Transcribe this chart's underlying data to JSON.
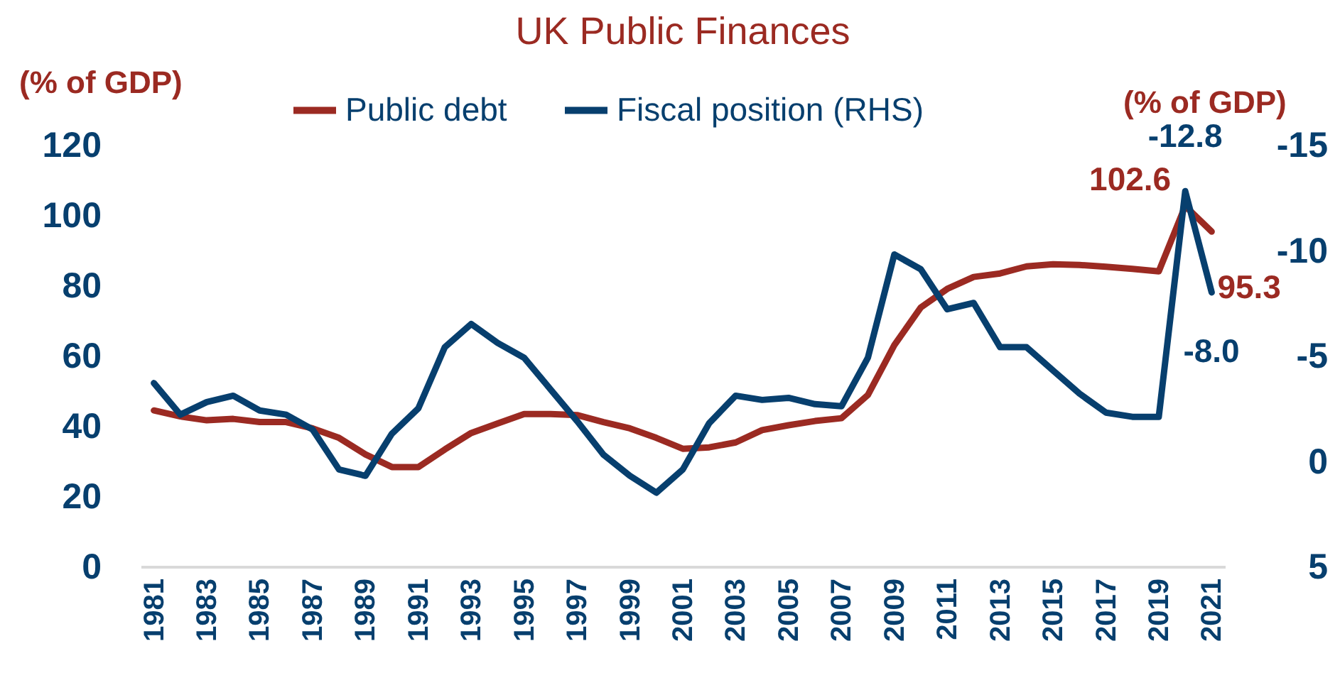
{
  "chart_data": {
    "type": "line",
    "title": "UK Public Finances",
    "ylabel": "(% of GDP)",
    "y2label": "(% of GDP)",
    "x": [
      1981,
      1982,
      1983,
      1984,
      1985,
      1986,
      1987,
      1988,
      1989,
      1990,
      1991,
      1992,
      1993,
      1994,
      1995,
      1996,
      1997,
      1998,
      1999,
      2000,
      2001,
      2002,
      2003,
      2004,
      2005,
      2006,
      2007,
      2008,
      2009,
      2010,
      2011,
      2012,
      2013,
      2014,
      2015,
      2016,
      2017,
      2018,
      2019,
      2020,
      2021
    ],
    "xlim": [
      1980.5,
      2021.5
    ],
    "xticks": [
      1981,
      1983,
      1985,
      1987,
      1989,
      1991,
      1993,
      1995,
      1997,
      1999,
      2001,
      2003,
      2005,
      2007,
      2009,
      2011,
      2013,
      2015,
      2017,
      2019,
      2021
    ],
    "ylim": [
      0,
      120
    ],
    "yticks": [
      0,
      20,
      40,
      60,
      80,
      100,
      120
    ],
    "y2lim": [
      5,
      -15
    ],
    "y2ticks": [
      5,
      0,
      -5,
      -10,
      -15
    ],
    "legend": "top",
    "grid": false,
    "series": [
      {
        "name": "Public debt",
        "color": "#9b2a22",
        "values": [
          44.4,
          42.7,
          41.6,
          42,
          41.1,
          41.1,
          39.3,
          36.6,
          31.9,
          28.3,
          28.3,
          33.3,
          38,
          40.7,
          43.4,
          43.4,
          43.1,
          41.1,
          39.3,
          36.6,
          33.5,
          33.9,
          35.3,
          38.8,
          40.2,
          41.4,
          42.2,
          48.8,
          63,
          73.7,
          79,
          82.4,
          83.4,
          85.4,
          86,
          85.8,
          85.3,
          84.7,
          84,
          102.6,
          95.3
        ],
        "value_labels": [
          null,
          null,
          null,
          null,
          null,
          null,
          null,
          null,
          null,
          null,
          null,
          null,
          null,
          null,
          null,
          null,
          null,
          null,
          null,
          null,
          null,
          null,
          null,
          null,
          null,
          null,
          null,
          null,
          null,
          null,
          null,
          null,
          null,
          null,
          null,
          null,
          null,
          null,
          null,
          "102.6",
          "95.3"
        ]
      },
      {
        "name": "Fiscal position (RHS)",
        "color": "#073f6e",
        "axis": "y2",
        "values": [
          -3.7,
          -2.2,
          -2.8,
          -3.1,
          -2.4,
          -2.2,
          -1.5,
          0.4,
          0.7,
          -1.3,
          -2.5,
          -5.4,
          -6.5,
          -5.6,
          -4.9,
          -3.4,
          -1.9,
          -0.3,
          0.7,
          1.5,
          0.4,
          -1.8,
          -3.1,
          -2.9,
          -3.0,
          -2.7,
          -2.6,
          -4.9,
          -9.8,
          -9.1,
          -7.2,
          -7.5,
          -5.4,
          -5.4,
          -4.3,
          -3.2,
          -2.3,
          -2.1,
          -2.1,
          -12.8,
          -8.0
        ],
        "value_labels": [
          null,
          null,
          null,
          null,
          null,
          null,
          null,
          null,
          null,
          null,
          null,
          null,
          null,
          null,
          null,
          null,
          null,
          null,
          null,
          null,
          null,
          null,
          null,
          null,
          null,
          null,
          null,
          null,
          null,
          null,
          null,
          null,
          null,
          null,
          null,
          null,
          null,
          null,
          null,
          "-12.8",
          "-8.0"
        ]
      }
    ]
  }
}
